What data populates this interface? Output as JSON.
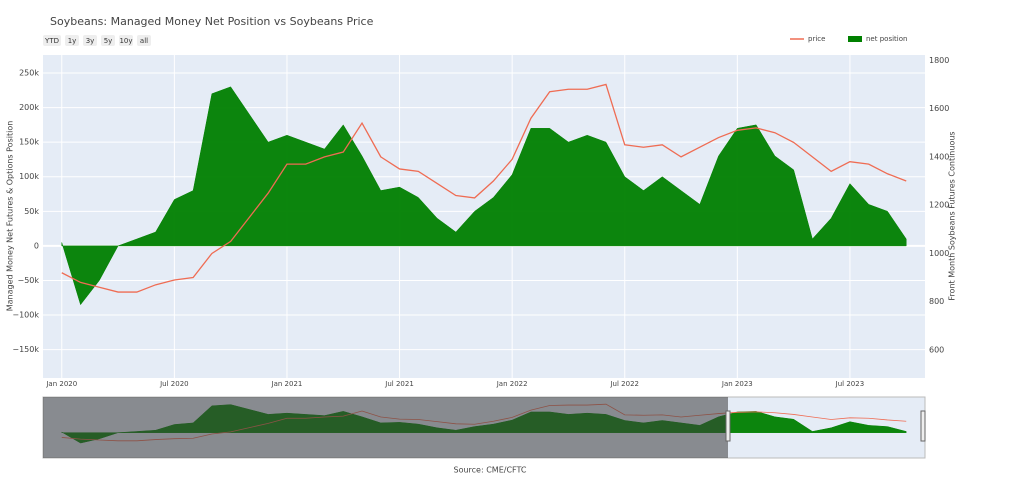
{
  "chart_data": {
    "type": "line",
    "title": "Soybeans: Managed Money Net Position vs Soybeans Price",
    "range_buttons": [
      "YTD",
      "1y",
      "3y",
      "5y",
      "10y",
      "all"
    ],
    "ylabel": "Managed Money Net Futures & Options Position",
    "y2label": "Front Month Soybeans Futures Continuous",
    "source": "Source: CME/CFTC",
    "grid": true,
    "legend": "top-right",
    "rangeslider": true,
    "x": [
      "2020-01",
      "2020-02",
      "2020-03",
      "2020-04",
      "2020-05",
      "2020-06",
      "2020-07",
      "2020-08",
      "2020-09",
      "2020-10",
      "2020-11",
      "2020-12",
      "2021-01",
      "2021-02",
      "2021-03",
      "2021-04",
      "2021-05",
      "2021-06",
      "2021-07",
      "2021-08",
      "2021-09",
      "2021-10",
      "2021-11",
      "2021-12",
      "2022-01",
      "2022-02",
      "2022-03",
      "2022-04",
      "2022-05",
      "2022-06",
      "2022-07",
      "2022-08",
      "2022-09",
      "2022-10",
      "2022-11",
      "2022-12",
      "2023-01",
      "2023-02",
      "2023-03",
      "2023-04",
      "2023-05",
      "2023-06",
      "2023-07",
      "2023-08",
      "2023-09",
      "2023-10"
    ],
    "xlim": [
      "2019-12",
      "2023-11"
    ],
    "xticks": [
      {
        "value": "2020-01",
        "label": "Jan 2020"
      },
      {
        "value": "2020-07",
        "label": "Jul 2020"
      },
      {
        "value": "2021-01",
        "label": "Jan 2021"
      },
      {
        "value": "2021-07",
        "label": "Jul 2021"
      },
      {
        "value": "2022-01",
        "label": "Jan 2022"
      },
      {
        "value": "2022-07",
        "label": "Jul 2022"
      },
      {
        "value": "2023-01",
        "label": "Jan 2023"
      },
      {
        "value": "2023-07",
        "label": "Jul 2023"
      }
    ],
    "ylim": [
      -191000,
      276000
    ],
    "yticks": [
      {
        "value": -150000,
        "label": "−150k"
      },
      {
        "value": -100000,
        "label": "−100k"
      },
      {
        "value": -50000,
        "label": "−50k"
      },
      0,
      {
        "value": 50000,
        "label": "50k"
      },
      {
        "value": 100000,
        "label": "100k"
      },
      {
        "value": 150000,
        "label": "150k"
      },
      {
        "value": 200000,
        "label": "200k"
      },
      {
        "value": 250000,
        "label": "250k"
      }
    ],
    "y2lim": [
      484,
      1822
    ],
    "y2ticks": [
      600,
      800,
      1000,
      1200,
      1400,
      1600,
      1800
    ],
    "series": [
      {
        "name": "price",
        "color": "#ef6c53",
        "mode": "line",
        "axis": "y2",
        "values": [
          920,
          880,
          860,
          840,
          840,
          870,
          890,
          900,
          1000,
          1050,
          1150,
          1250,
          1370,
          1370,
          1400,
          1420,
          1540,
          1400,
          1350,
          1340,
          1290,
          1240,
          1230,
          1300,
          1390,
          1560,
          1670,
          1680,
          1680,
          1700,
          1450,
          1440,
          1450,
          1400,
          1440,
          1480,
          1510,
          1520,
          1500,
          1460,
          1400,
          1340,
          1380,
          1370,
          1330,
          1300
        ]
      },
      {
        "name": "net position",
        "color": "#008000",
        "mode": "area",
        "axis": "y",
        "values": [
          5000,
          -85000,
          -50000,
          0,
          10000,
          20000,
          67000,
          80000,
          220000,
          230000,
          190000,
          150000,
          160000,
          150000,
          140000,
          175000,
          130000,
          80000,
          85000,
          70000,
          40000,
          20000,
          50000,
          70000,
          103000,
          170000,
          170000,
          150000,
          160000,
          150000,
          100000,
          80000,
          100000,
          80000,
          60000,
          130000,
          170000,
          175000,
          130000,
          110000,
          10000,
          40000,
          90000,
          60000,
          50000,
          10000
        ]
      }
    ]
  }
}
